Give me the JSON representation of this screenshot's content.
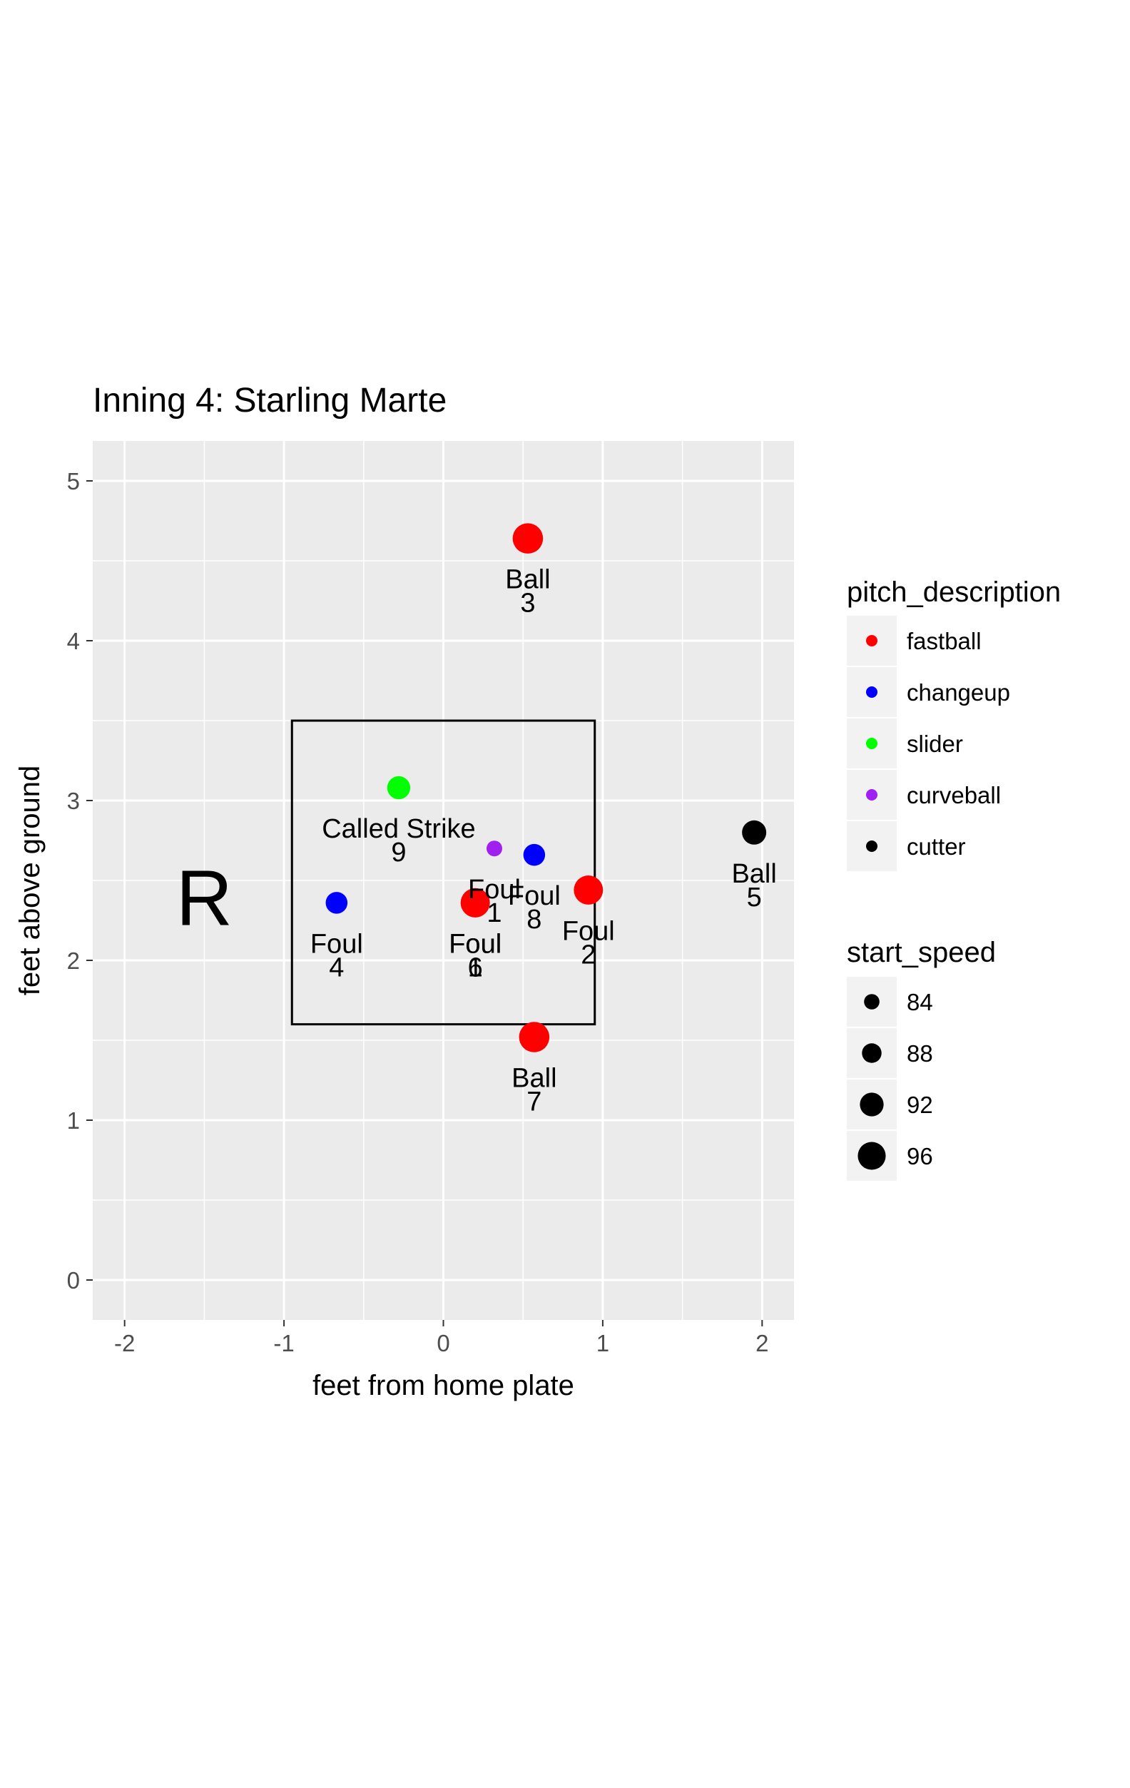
{
  "chart_data": {
    "type": "scatter",
    "title": "Inning 4: Starling Marte",
    "xlabel": "feet from home plate",
    "ylabel": "feet above ground",
    "xlim": [
      -2.2,
      2.2
    ],
    "ylim": [
      -0.25,
      5.25
    ],
    "x_ticks": [
      -2,
      -1,
      0,
      1,
      2
    ],
    "x_tick_labels": [
      "-2",
      "-1",
      "0",
      "1",
      "2"
    ],
    "y_ticks": [
      0,
      1,
      2,
      3,
      4,
      5
    ],
    "y_tick_labels": [
      "0",
      "1",
      "2",
      "3",
      "4",
      "5"
    ],
    "grid": true,
    "strike_zone": {
      "x": [
        -0.95,
        0.95
      ],
      "y": [
        1.6,
        3.5
      ]
    },
    "batter_stance": "R",
    "color_legend": {
      "title": "pitch_description",
      "placement": "right",
      "entries": [
        {
          "label": "fastball",
          "color": "#ff0000"
        },
        {
          "label": "changeup",
          "color": "#0000ff"
        },
        {
          "label": "slider",
          "color": "#00ff00"
        },
        {
          "label": "curveball",
          "color": "#a020f0"
        },
        {
          "label": "cutter",
          "color": "#000000"
        }
      ]
    },
    "size_legend": {
      "title": "start_speed",
      "placement": "right",
      "entries": [
        {
          "label": "84",
          "value": 84
        },
        {
          "label": "88",
          "value": 88
        },
        {
          "label": "92",
          "value": 92
        },
        {
          "label": "96",
          "value": 96
        }
      ]
    },
    "points": [
      {
        "x": 0.2,
        "y": 2.36,
        "pitch": "fastball",
        "speed": 93,
        "result": "Foul",
        "number": "1"
      },
      {
        "x": 0.91,
        "y": 2.44,
        "pitch": "fastball",
        "speed": 93,
        "result": "Foul",
        "number": "2"
      },
      {
        "x": 0.53,
        "y": 4.64,
        "pitch": "fastball",
        "speed": 94,
        "result": "Ball",
        "number": "3"
      },
      {
        "x": -0.67,
        "y": 2.36,
        "pitch": "changeup",
        "speed": 87,
        "result": "Foul",
        "number": "4"
      },
      {
        "x": 1.95,
        "y": 2.8,
        "pitch": "cutter",
        "speed": 89,
        "result": "Ball",
        "number": "5"
      },
      {
        "x": 0.2,
        "y": 2.36,
        "pitch": "fastball",
        "speed": 93,
        "result": "Foul",
        "number": "6"
      },
      {
        "x": 0.57,
        "y": 1.52,
        "pitch": "fastball",
        "speed": 94,
        "result": "Ball",
        "number": "7"
      },
      {
        "x": 0.57,
        "y": 2.66,
        "pitch": "changeup",
        "speed": 87,
        "result": "Foul",
        "number": "8"
      },
      {
        "x": -0.28,
        "y": 3.08,
        "pitch": "slider",
        "speed": 88,
        "result": "Called Strike",
        "number": "9"
      },
      {
        "x": 0.32,
        "y": 2.7,
        "pitch": "curveball",
        "speed": 82,
        "result": "Foul",
        "number": "1"
      }
    ]
  }
}
